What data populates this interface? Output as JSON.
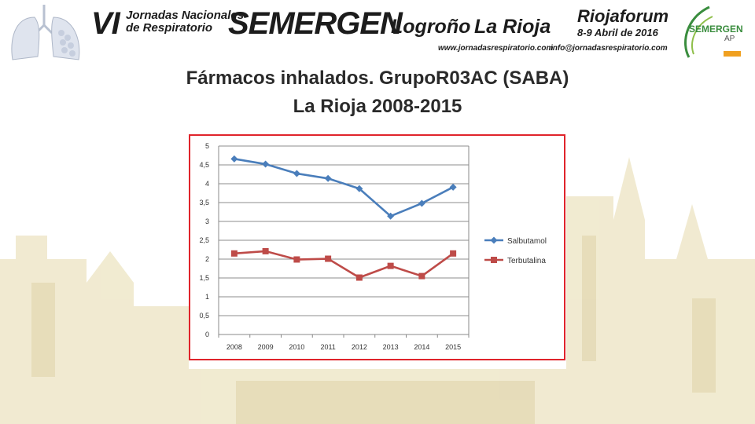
{
  "header": {
    "edition": "VI",
    "subtitle_line1": "Jornadas Nacionales",
    "subtitle_line2": "de Respiratorio",
    "org": "SEMERGEN",
    "city": "Logroño",
    "region": "La Rioja",
    "website": "www.jornadasrespiratorio.com",
    "venue": "Riojaforum",
    "dates": "8-9 Abril de 2016",
    "email": "info@jornadasrespiratorio.com",
    "logo_name": "SEMERGEN",
    "logo_sub": "AP"
  },
  "colors": {
    "frame": "#e0242b",
    "series1": "#4a7ebb",
    "series2": "#be4b48",
    "logo_green": "#3a8d3e"
  },
  "chart_data": {
    "type": "line",
    "title_line1": "Fármacos inhalados. GrupoR03AC (SABA)",
    "title_line2": "La Rioja 2008-2015",
    "categories": [
      "2008",
      "2009",
      "2010",
      "2011",
      "2012",
      "2013",
      "2014",
      "2015"
    ],
    "ylim": [
      0,
      5
    ],
    "yticks": [
      "0",
      "0,5",
      "1",
      "1,5",
      "2",
      "2,5",
      "3",
      "3,5",
      "4",
      "4,5",
      "5"
    ],
    "grid": "horizontal",
    "legend_position": "right",
    "series": [
      {
        "name": "Salbutamol",
        "marker": "diamond",
        "color": "#4a7ebb",
        "values": [
          4.66,
          4.52,
          4.27,
          4.14,
          3.87,
          3.14,
          3.48,
          3.91
        ]
      },
      {
        "name": "Terbutalina",
        "marker": "square",
        "color": "#be4b48",
        "values": [
          2.15,
          2.21,
          1.99,
          2.01,
          1.51,
          1.82,
          1.55,
          2.15
        ]
      }
    ]
  }
}
